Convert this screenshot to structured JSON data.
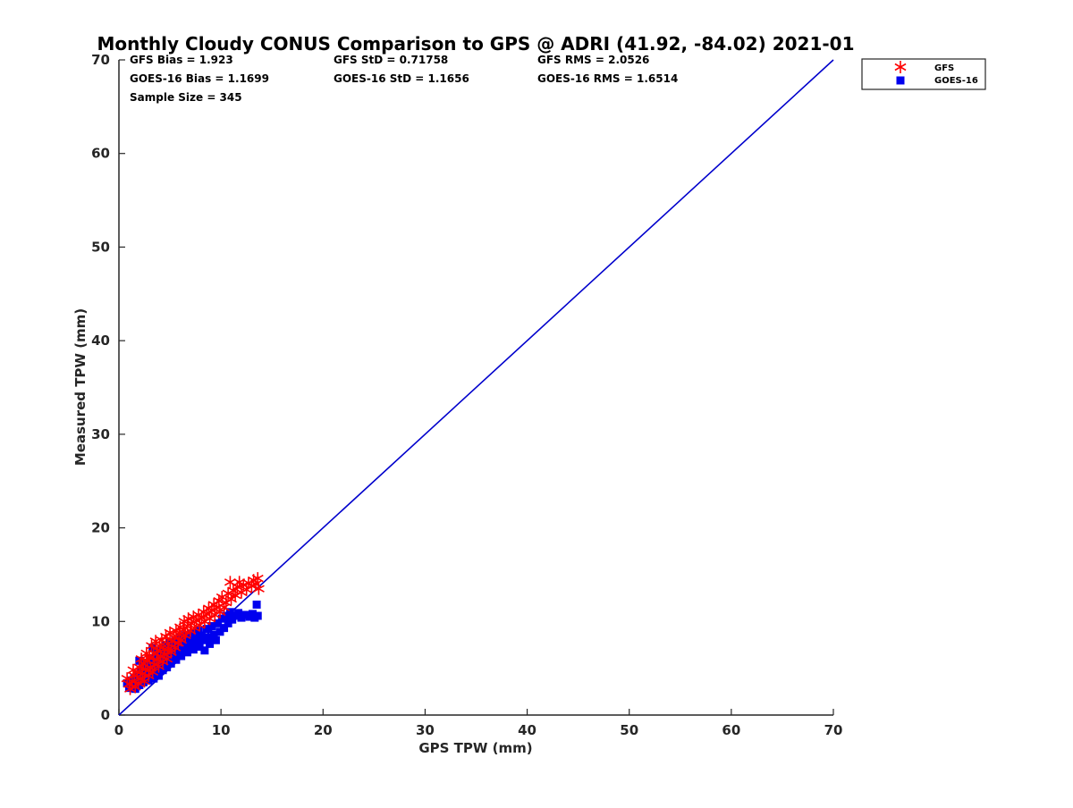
{
  "chart_data": {
    "type": "scatter",
    "title": "Monthly Cloudy CONUS Comparison to GPS @ ADRI (41.92, -84.02) 2021-01",
    "xlabel": "GPS TPW (mm)",
    "ylabel": "Measured TPW (mm)",
    "xlim": [
      0,
      70
    ],
    "ylim": [
      0,
      70
    ],
    "xticks": [
      0,
      10,
      20,
      30,
      40,
      50,
      60,
      70
    ],
    "yticks": [
      0,
      10,
      20,
      30,
      40,
      50,
      60,
      70
    ],
    "grid": false,
    "legend_position": "outside-top-right",
    "stats": {
      "row1": [
        "GFS Bias = 1.923",
        "GFS StD = 0.71758",
        "GFS RMS = 2.0526"
      ],
      "row2": [
        "GOES-16 Bias = 1.1699",
        "GOES-16 StD = 1.1656",
        "GOES-16 RMS = 1.6514"
      ],
      "row3": [
        "Sample Size = 345"
      ]
    },
    "reference_line": {
      "x": [
        0,
        70
      ],
      "y": [
        0,
        70
      ],
      "color": "#0000cc"
    },
    "series": [
      {
        "name": "GFS",
        "marker": "asterisk",
        "color": "#ff0000",
        "points": [
          [
            0.8,
            3.9
          ],
          [
            1.0,
            3.3
          ],
          [
            1.1,
            2.8
          ],
          [
            1.3,
            3.6
          ],
          [
            1.5,
            4.2
          ],
          [
            1.6,
            3.0
          ],
          [
            1.8,
            4.6
          ],
          [
            1.9,
            3.4
          ],
          [
            2.0,
            5.1
          ],
          [
            2.1,
            3.9
          ],
          [
            2.3,
            4.4
          ],
          [
            2.4,
            5.5
          ],
          [
            2.5,
            3.6
          ],
          [
            2.6,
            4.9
          ],
          [
            2.8,
            5.8
          ],
          [
            2.9,
            4.2
          ],
          [
            3.0,
            6.1
          ],
          [
            3.1,
            5.0
          ],
          [
            3.2,
            7.4
          ],
          [
            3.3,
            4.6
          ],
          [
            3.4,
            6.6
          ],
          [
            3.5,
            5.4
          ],
          [
            3.6,
            7.9
          ],
          [
            3.7,
            5.9
          ],
          [
            3.8,
            6.9
          ],
          [
            3.9,
            5.2
          ],
          [
            4.0,
            7.4
          ],
          [
            4.1,
            6.3
          ],
          [
            4.2,
            8.0
          ],
          [
            4.3,
            5.7
          ],
          [
            4.4,
            7.0
          ],
          [
            4.5,
            6.5
          ],
          [
            4.6,
            8.4
          ],
          [
            4.7,
            6.0
          ],
          [
            4.8,
            7.6
          ],
          [
            4.9,
            7.1
          ],
          [
            5.0,
            8.8
          ],
          [
            5.1,
            6.7
          ],
          [
            5.2,
            7.9
          ],
          [
            5.4,
            8.3
          ],
          [
            5.5,
            7.2
          ],
          [
            5.6,
            9.0
          ],
          [
            5.8,
            7.7
          ],
          [
            5.9,
            8.6
          ],
          [
            6.0,
            9.4
          ],
          [
            6.1,
            8.0
          ],
          [
            6.3,
            9.1
          ],
          [
            6.4,
            10.0
          ],
          [
            6.5,
            8.5
          ],
          [
            6.7,
            9.5
          ],
          [
            6.8,
            10.3
          ],
          [
            7.0,
            9.0
          ],
          [
            7.1,
            9.8
          ],
          [
            7.3,
            10.5
          ],
          [
            7.4,
            9.3
          ],
          [
            7.6,
            10.1
          ],
          [
            7.8,
            10.7
          ],
          [
            7.9,
            9.6
          ],
          [
            8.1,
            10.4
          ],
          [
            8.3,
            11.0
          ],
          [
            8.4,
            10.0
          ],
          [
            8.6,
            10.8
          ],
          [
            8.8,
            11.4
          ],
          [
            8.9,
            10.3
          ],
          [
            9.1,
            11.2
          ],
          [
            9.3,
            11.8
          ],
          [
            9.4,
            10.7
          ],
          [
            9.6,
            11.5
          ],
          [
            9.8,
            12.2
          ],
          [
            9.9,
            11.0
          ],
          [
            10.1,
            12.6
          ],
          [
            10.3,
            11.5
          ],
          [
            10.5,
            12.0
          ],
          [
            10.7,
            13.0
          ],
          [
            10.9,
            14.2
          ],
          [
            11.0,
            12.4
          ],
          [
            11.2,
            13.3
          ],
          [
            11.4,
            12.8
          ],
          [
            11.6,
            13.7
          ],
          [
            11.8,
            14.2
          ],
          [
            12.0,
            13.1
          ],
          [
            12.2,
            13.9
          ],
          [
            12.5,
            13.4
          ],
          [
            12.7,
            14.1
          ],
          [
            13.0,
            13.8
          ],
          [
            13.2,
            14.4
          ],
          [
            13.4,
            14.0
          ],
          [
            13.6,
            14.6
          ],
          [
            13.7,
            13.5
          ],
          [
            2.2,
            6.0
          ],
          [
            2.7,
            6.6
          ],
          [
            1.4,
            4.8
          ]
        ]
      },
      {
        "name": "GOES-16",
        "marker": "square",
        "color": "#0000ee",
        "points": [
          [
            0.8,
            3.4
          ],
          [
            1.0,
            2.9
          ],
          [
            1.2,
            3.7
          ],
          [
            1.3,
            3.1
          ],
          [
            1.5,
            4.0
          ],
          [
            1.6,
            2.8
          ],
          [
            1.7,
            3.5
          ],
          [
            1.9,
            4.3
          ],
          [
            2.0,
            3.2
          ],
          [
            2.1,
            4.6
          ],
          [
            2.2,
            3.8
          ],
          [
            2.3,
            5.2
          ],
          [
            2.4,
            3.5
          ],
          [
            2.5,
            4.4
          ],
          [
            2.6,
            5.6
          ],
          [
            2.7,
            4.0
          ],
          [
            2.8,
            4.9
          ],
          [
            2.9,
            3.7
          ],
          [
            3.0,
            5.5
          ],
          [
            3.1,
            4.3
          ],
          [
            3.2,
            6.1
          ],
          [
            3.3,
            4.8
          ],
          [
            3.4,
            3.9
          ],
          [
            3.5,
            5.7
          ],
          [
            3.6,
            4.5
          ],
          [
            3.7,
            6.6
          ],
          [
            3.8,
            5.1
          ],
          [
            3.9,
            4.2
          ],
          [
            4.0,
            6.0
          ],
          [
            4.1,
            5.4
          ],
          [
            4.2,
            7.0
          ],
          [
            4.3,
            4.8
          ],
          [
            4.4,
            6.3
          ],
          [
            4.5,
            5.7
          ],
          [
            4.6,
            7.4
          ],
          [
            4.7,
            5.1
          ],
          [
            4.8,
            6.7
          ],
          [
            4.9,
            6.0
          ],
          [
            5.0,
            7.7
          ],
          [
            5.1,
            5.5
          ],
          [
            5.2,
            7.1
          ],
          [
            5.4,
            6.4
          ],
          [
            5.5,
            8.0
          ],
          [
            5.6,
            5.9
          ],
          [
            5.8,
            7.4
          ],
          [
            5.9,
            6.8
          ],
          [
            6.0,
            8.3
          ],
          [
            6.1,
            6.3
          ],
          [
            6.3,
            7.7
          ],
          [
            6.4,
            7.1
          ],
          [
            6.5,
            8.5
          ],
          [
            6.7,
            6.7
          ],
          [
            6.8,
            8.0
          ],
          [
            7.0,
            7.4
          ],
          [
            7.1,
            8.7
          ],
          [
            7.3,
            7.0
          ],
          [
            7.4,
            8.2
          ],
          [
            7.6,
            7.7
          ],
          [
            7.8,
            9.0
          ],
          [
            7.9,
            7.3
          ],
          [
            8.1,
            8.5
          ],
          [
            8.3,
            8.0
          ],
          [
            8.4,
            6.9
          ],
          [
            8.6,
            9.2
          ],
          [
            8.8,
            8.3
          ],
          [
            8.9,
            7.6
          ],
          [
            9.1,
            9.5
          ],
          [
            9.3,
            8.6
          ],
          [
            9.5,
            8.0
          ],
          [
            9.7,
            9.8
          ],
          [
            9.9,
            8.9
          ],
          [
            10.1,
            10.3
          ],
          [
            10.3,
            9.3
          ],
          [
            10.5,
            10.6
          ],
          [
            10.7,
            9.8
          ],
          [
            10.9,
            11.0
          ],
          [
            11.1,
            10.2
          ],
          [
            11.4,
            10.6
          ],
          [
            11.7,
            10.9
          ],
          [
            12.0,
            10.4
          ],
          [
            12.4,
            10.7
          ],
          [
            12.8,
            10.5
          ],
          [
            13.1,
            10.8
          ],
          [
            13.3,
            10.4
          ],
          [
            13.5,
            11.8
          ],
          [
            13.6,
            10.6
          ],
          [
            3.3,
            7.2
          ],
          [
            2.0,
            5.8
          ]
        ]
      }
    ]
  }
}
